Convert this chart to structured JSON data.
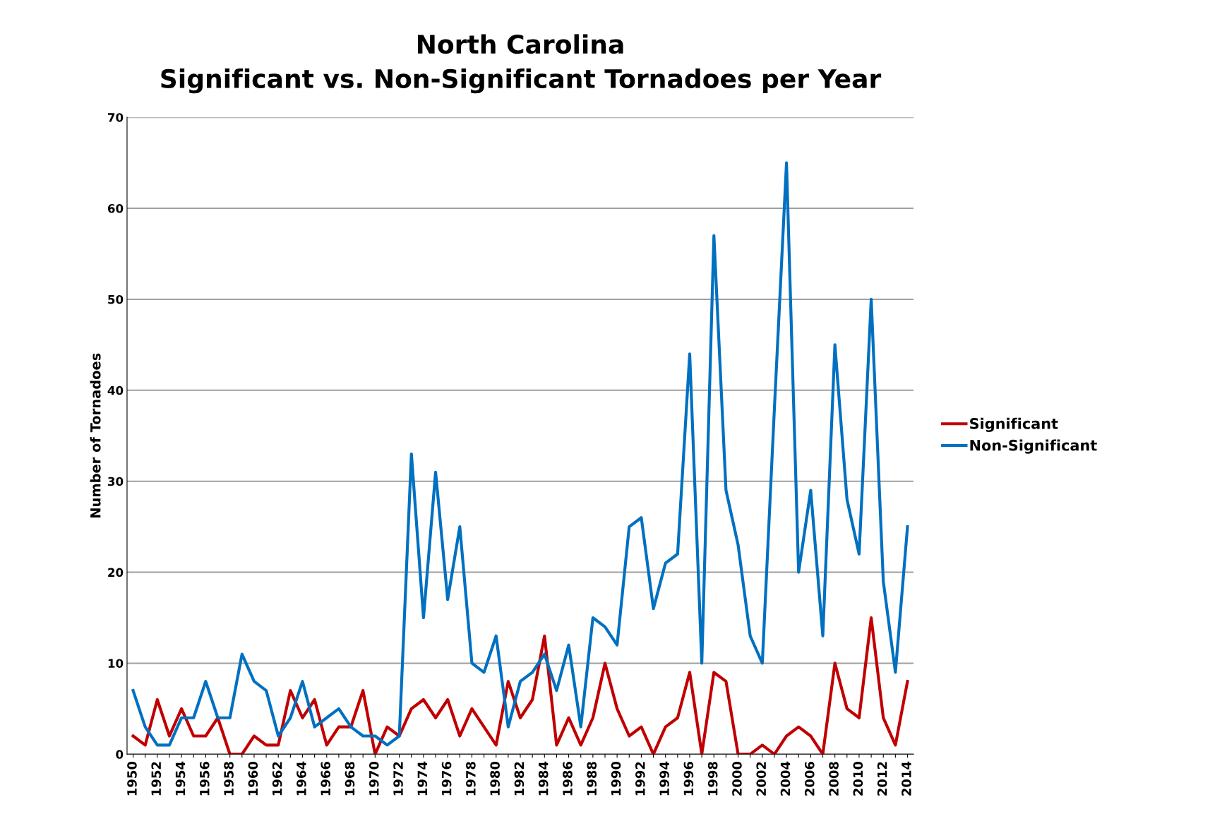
{
  "chart_data": {
    "type": "line",
    "title": "North Carolina\nSignificant vs. Non-Significant Tornadoes per Year",
    "ylabel": "Number of Tornadoes",
    "categories": [
      "1950",
      null,
      "1952",
      null,
      "1954",
      null,
      "1956",
      null,
      "1958",
      null,
      "1960",
      null,
      "1962",
      null,
      "1964",
      null,
      "1966",
      null,
      "1968",
      null,
      "1970",
      null,
      "1972",
      null,
      "1974",
      null,
      "1976",
      null,
      "1978",
      null,
      "1980",
      null,
      "1982",
      null,
      "1984",
      null,
      "1986",
      null,
      "1988",
      null,
      "1990",
      null,
      "1992",
      null,
      "1994",
      null,
      "1996",
      null,
      "1998",
      null,
      "2000",
      null,
      "2002",
      null,
      "2004",
      null,
      "2006",
      null,
      "2008",
      null,
      "2010",
      null,
      "2012",
      null,
      "2014"
    ],
    "series": [
      {
        "name": "Significant",
        "color": "#c00000",
        "values": [
          2,
          1,
          6,
          2,
          5,
          2,
          2,
          4,
          0,
          0,
          2,
          1,
          1,
          7,
          4,
          6,
          1,
          3,
          3,
          7,
          0,
          3,
          2,
          5,
          6,
          4,
          6,
          2,
          5,
          3,
          1,
          8,
          4,
          6,
          13,
          1,
          4,
          1,
          4,
          10,
          5,
          2,
          3,
          0,
          3,
          4,
          9,
          0,
          9,
          8,
          0,
          0,
          1,
          0,
          2,
          3,
          2,
          0,
          10,
          5,
          4,
          15,
          4,
          1,
          8
        ]
      },
      {
        "name": "Non-Significant",
        "color": "#0070c0",
        "values": [
          7,
          3,
          1,
          1,
          4,
          4,
          8,
          4,
          4,
          11,
          8,
          7,
          2,
          4,
          8,
          3,
          4,
          5,
          3,
          2,
          2,
          1,
          2,
          33,
          15,
          31,
          17,
          25,
          10,
          9,
          13,
          3,
          8,
          9,
          11,
          7,
          12,
          3,
          15,
          14,
          12,
          25,
          26,
          16,
          21,
          22,
          44,
          10,
          57,
          29,
          23,
          13,
          10,
          38,
          65,
          20,
          29,
          13,
          45,
          28,
          22,
          50,
          19,
          9,
          25
        ]
      }
    ],
    "ylim": [
      0,
      70
    ],
    "yticks": [
      0,
      10,
      20,
      30,
      40,
      50,
      60,
      70
    ],
    "grid": "y",
    "legend": "right",
    "marker": "none",
    "line_style": "solid"
  }
}
